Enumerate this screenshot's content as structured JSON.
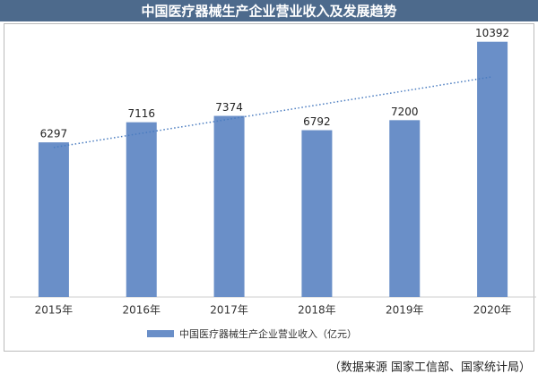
{
  "chart_data": {
    "type": "bar",
    "title": "中国医疗器械生产企业营业收入及发展趋势",
    "categories": [
      "2015年",
      "2016年",
      "2017年",
      "2018年",
      "2019年",
      "2020年"
    ],
    "series": [
      {
        "name": "中国医疗器械生产企业营业收入（亿元）",
        "color": "#6a8fc8",
        "values": [
          6297,
          7116,
          7374,
          6792,
          7200,
          10392
        ]
      }
    ],
    "ylim": [
      0,
      11000
    ],
    "trendline": true,
    "trendline_color": "#4a7cc0",
    "legend": "bottom",
    "source": "（数据来源 国家工信部、国家统计局）"
  }
}
